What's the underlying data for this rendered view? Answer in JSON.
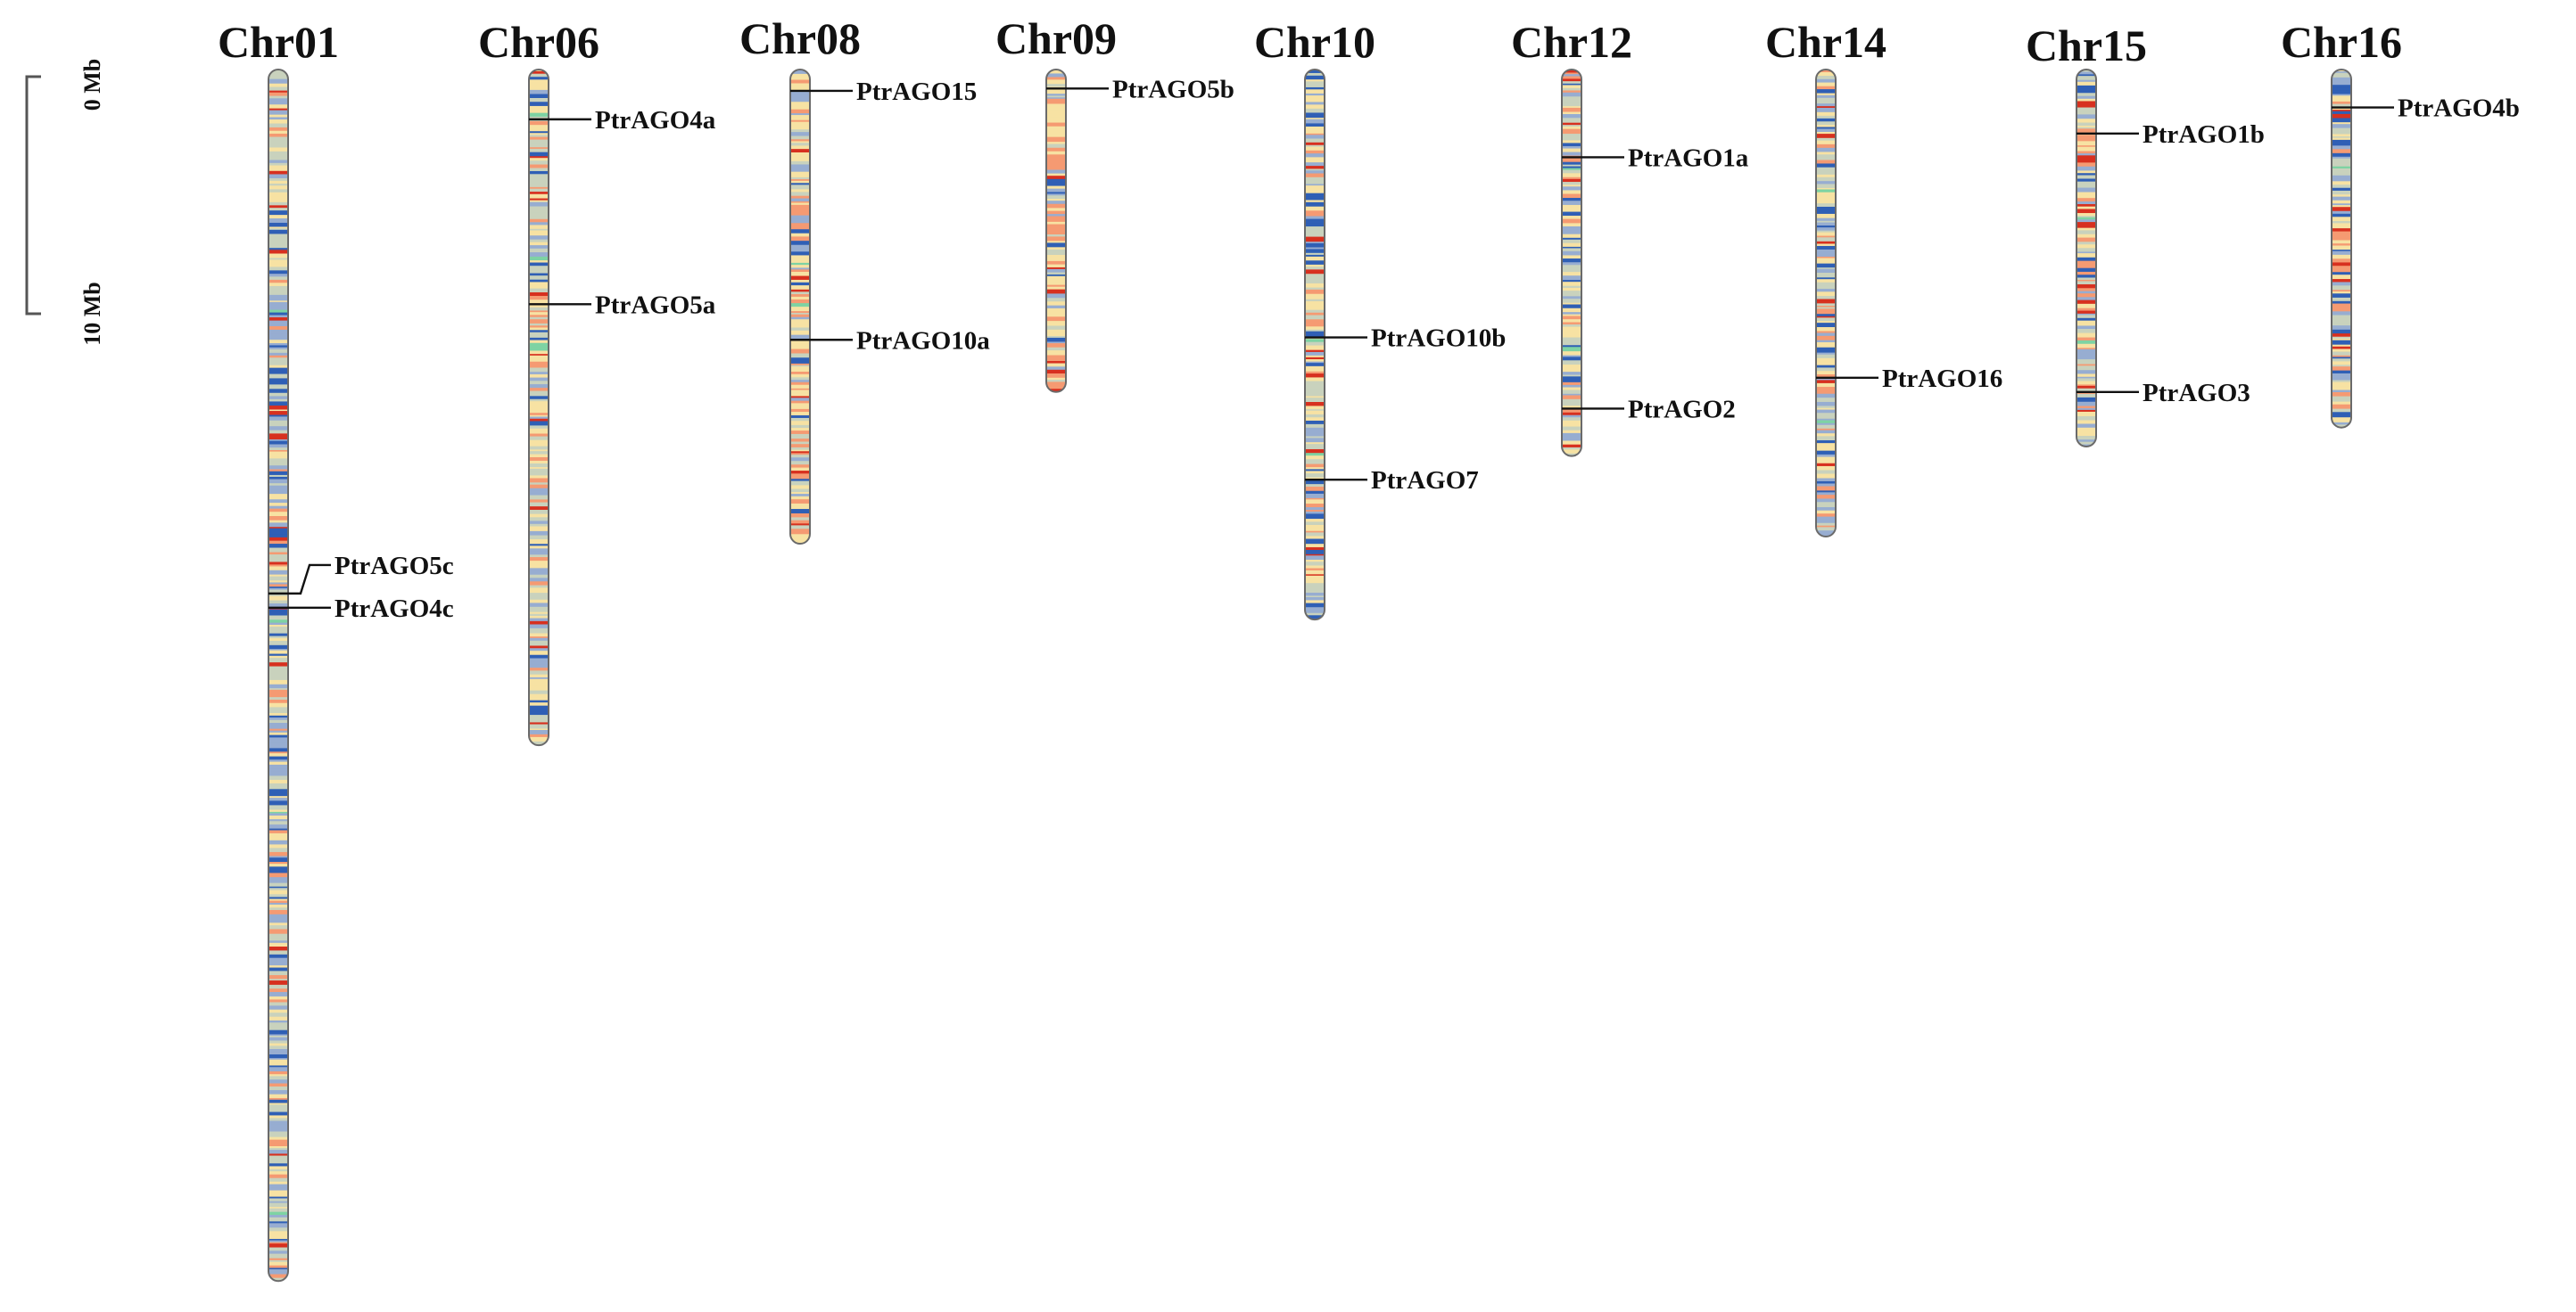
{
  "scale": {
    "top_label": "0 Mb",
    "bottom_label": "10 Mb",
    "span_mb": 10
  },
  "palette": {
    "high": "#d7301f",
    "mid_high": "#f59a72",
    "mid": "#f7e2a3",
    "neutral": "#c9d2bd",
    "low_mid": "#97add1",
    "low": "#2f5fb5",
    "rare": "#7ed3a3",
    "line": "#111111",
    "outline": "#6a6a6a"
  },
  "chromosomes": [
    {
      "id": "chr01",
      "name": "Chr01",
      "length_mb": 50.5,
      "bias": 0.35,
      "genes": [
        {
          "name": "PtrAGO5c",
          "pos_mb": 21.8,
          "label_pos_mb": 20.6
        },
        {
          "name": "PtrAGO4c",
          "pos_mb": 22.4,
          "label_pos_mb": 22.4
        }
      ]
    },
    {
      "id": "chr06",
      "name": "Chr06",
      "length_mb": 27.9,
      "bias": 0.45,
      "genes": [
        {
          "name": "PtrAGO4a",
          "pos_mb": 1.8
        },
        {
          "name": "PtrAGO5a",
          "pos_mb": 9.6
        }
      ]
    },
    {
      "id": "chr08",
      "name": "Chr08",
      "length_mb": 19.4,
      "bias": 0.62,
      "genes": [
        {
          "name": "PtrAGO15",
          "pos_mb": 0.6
        },
        {
          "name": "PtrAGO10a",
          "pos_mb": 11.1
        }
      ]
    },
    {
      "id": "chr09",
      "name": "Chr09",
      "length_mb": 13.0,
      "bias": 0.72,
      "genes": [
        {
          "name": "PtrAGO5b",
          "pos_mb": 0.5
        }
      ]
    },
    {
      "id": "chr10",
      "name": "Chr10",
      "length_mb": 22.6,
      "bias": 0.5,
      "genes": [
        {
          "name": "PtrAGO10b",
          "pos_mb": 11.0
        },
        {
          "name": "PtrAGO7",
          "pos_mb": 17.0
        }
      ]
    },
    {
      "id": "chr12",
      "name": "Chr12",
      "length_mb": 15.7,
      "bias": 0.45,
      "genes": [
        {
          "name": "PtrAGO1a",
          "pos_mb": 3.4
        },
        {
          "name": "PtrAGO2",
          "pos_mb": 14.0
        }
      ]
    },
    {
      "id": "chr14",
      "name": "Chr14",
      "length_mb": 19.1,
      "bias": 0.48,
      "genes": [
        {
          "name": "PtrAGO16",
          "pos_mb": 12.7
        }
      ]
    },
    {
      "id": "chr15",
      "name": "Chr15",
      "length_mb": 15.3,
      "bias": 0.5,
      "genes": [
        {
          "name": "PtrAGO1b",
          "pos_mb": 2.4
        },
        {
          "name": "PtrAGO3",
          "pos_mb": 13.3
        }
      ]
    },
    {
      "id": "chr16",
      "name": "Chr16",
      "length_mb": 14.5,
      "bias": 0.5,
      "genes": [
        {
          "name": "PtrAGO4b",
          "pos_mb": 1.3
        }
      ]
    }
  ]
}
